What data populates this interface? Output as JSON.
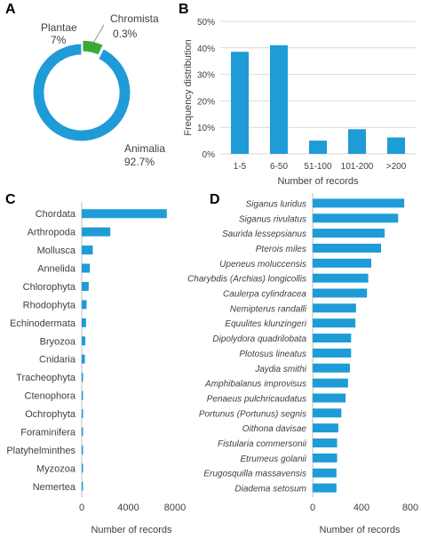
{
  "figure": {
    "panel_labels": [
      "A",
      "B",
      "C",
      "D"
    ],
    "bar_color": "#1f9bd7",
    "plantae_color": "#3aaa35",
    "chromista_color": "#9e9e9e"
  },
  "chart_data": [
    {
      "id": "A",
      "type": "pie",
      "donut": true,
      "slices": [
        {
          "name": "Animalia",
          "value": 92.7,
          "label": "Animalia",
          "value_label": "92.7%"
        },
        {
          "name": "Plantae",
          "value": 7.0,
          "label": "Plantae",
          "value_label": "7%"
        },
        {
          "name": "Chromista",
          "value": 0.3,
          "label": "Chromista",
          "value_label": "0.3%"
        }
      ]
    },
    {
      "id": "B",
      "type": "bar",
      "categories": [
        "1-5",
        "6-50",
        "51-100",
        "101-200",
        ">200"
      ],
      "values": [
        38.5,
        41,
        5,
        9.3,
        6.2
      ],
      "xlabel": "Number of records",
      "ylabel": "Frequency distribution",
      "ylim": [
        0,
        50
      ],
      "yticks": [
        "0%",
        "10%",
        "20%",
        "30%",
        "40%",
        "50%"
      ],
      "grid": true
    },
    {
      "id": "C",
      "type": "bar",
      "orientation": "horizontal",
      "categories": [
        "Chordata",
        "Arthropoda",
        "Mollusca",
        "Annelida",
        "Chlorophyta",
        "Rhodophyta",
        "Echinodermata",
        "Bryozoa",
        "Cnidaria",
        "Tracheophyta",
        "Ctenophora",
        "Ochrophyta",
        "Foraminifera",
        "Platyhelminthes",
        "Myzozoa",
        "Nemertea"
      ],
      "values": [
        7300,
        2450,
        950,
        700,
        600,
        420,
        370,
        310,
        270,
        110,
        70,
        60,
        50,
        40,
        30,
        20
      ],
      "xlabel": "Number of records",
      "xlim": [
        0,
        8000
      ],
      "xticks": [
        "0",
        "4000",
        "8000"
      ]
    },
    {
      "id": "D",
      "type": "bar",
      "orientation": "horizontal",
      "categories": [
        "Siganus luridus",
        "Siganus rivulatus",
        "Saurida lessepsianus",
        "Pterois miles",
        "Upeneus moluccensis",
        "Charybdis (Archias) longicollis",
        "Caulerpa cylindracea",
        "Nemipterus randalli",
        "Equulites klunzingeri",
        "Dipolydora quadrilobata",
        "Plotosus lineatus",
        "Jaydia smithi",
        "Amphibalanus improvisus",
        "Penaeus pulchricaudatus",
        "Portunus (Portunus) segnis",
        "Oithona davisae",
        "Fistularia commersonii",
        "Etrumeus golanii",
        "Erugosquilla massavensis",
        "Diadema setosum"
      ],
      "values": [
        750,
        700,
        590,
        560,
        480,
        455,
        445,
        355,
        350,
        315,
        315,
        305,
        290,
        270,
        235,
        210,
        200,
        200,
        195,
        195
      ],
      "xlabel": "Number of records",
      "xlim": [
        0,
        800
      ],
      "xticks": [
        "0",
        "400",
        "800"
      ]
    }
  ]
}
